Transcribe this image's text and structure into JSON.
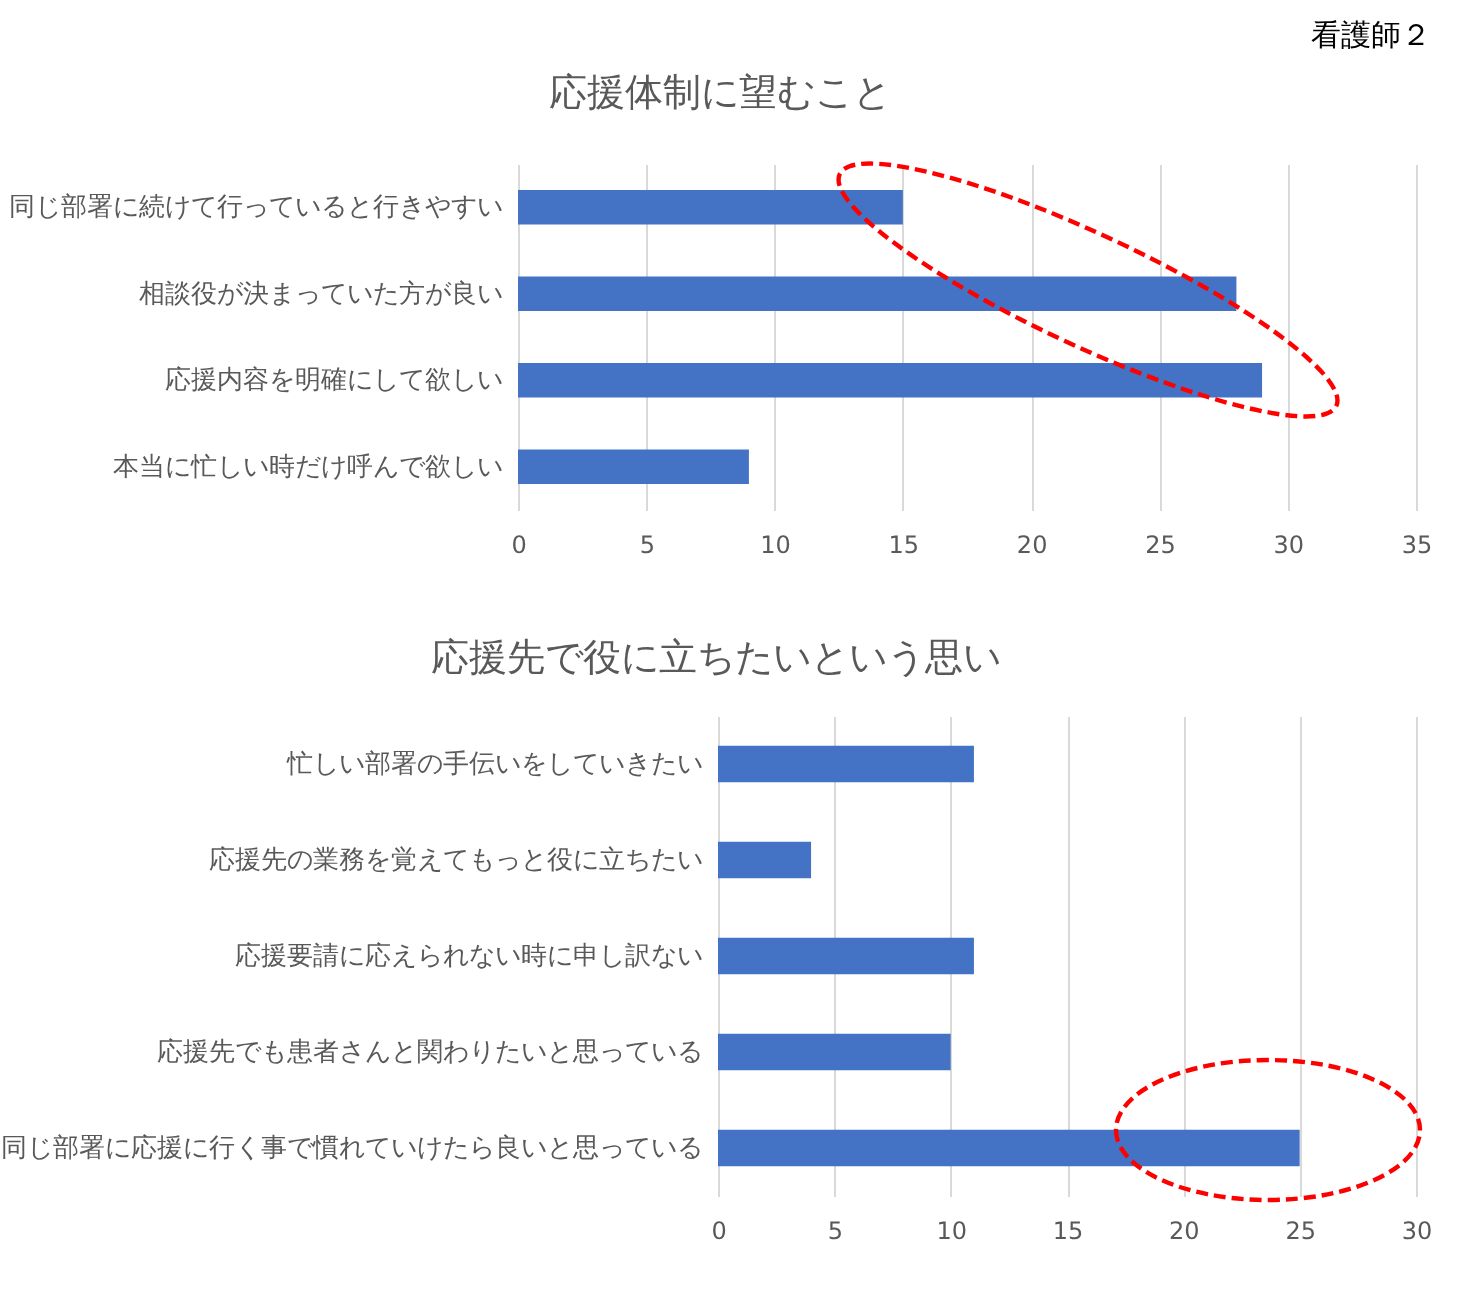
{
  "chart_data": [
    {
      "type": "bar",
      "orientation": "horizontal",
      "title": "応援体制に望むこと",
      "categories": [
        "同じ部署に続けて行っていると行きやすい",
        "相談役が決まっていた方が良い",
        "応援内容を明確にして欲しい",
        "本当に忙しい時だけ呼んで欲しい"
      ],
      "values": [
        15,
        28,
        29,
        9
      ],
      "color": "#4472c4",
      "xlim": [
        0,
        35
      ],
      "xticks": [
        0,
        5,
        10,
        15,
        20,
        25,
        30,
        35
      ],
      "grid": "x",
      "annotations": [
        "看護師２"
      ]
    },
    {
      "type": "bar",
      "orientation": "horizontal",
      "title": "応援先で役に立ちたいという思い",
      "categories": [
        "忙しい部署の手伝いをしていきたい",
        "応援先の業務を覚えてもっと役に立ちたい",
        "応援要請に応えられない時に申し訳ない",
        "応援先でも患者さんと関わりたいと思っている",
        "同じ部署に応援に行く事で慣れていけたら良いと思っている"
      ],
      "values": [
        11,
        4,
        11,
        10,
        25
      ],
      "color": "#4472c4",
      "xlim": [
        0,
        30
      ],
      "xticks": [
        0,
        5,
        10,
        15,
        20,
        25,
        30
      ],
      "grid": "x"
    }
  ]
}
